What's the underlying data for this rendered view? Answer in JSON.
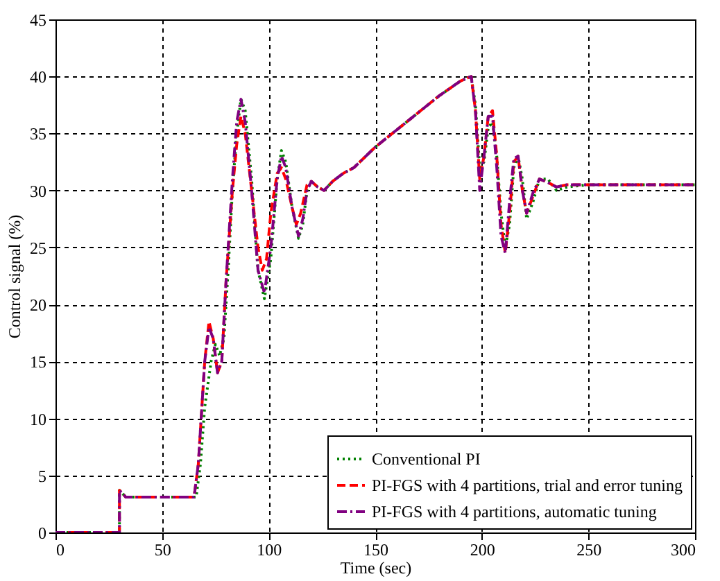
{
  "chart_data": {
    "type": "line",
    "xlabel": "Time (sec)",
    "ylabel": "Control signal (%)",
    "xlim": [
      0,
      300
    ],
    "ylim": [
      0,
      45
    ],
    "xticks": [
      0,
      50,
      100,
      150,
      200,
      250,
      300
    ],
    "yticks": [
      0,
      5,
      10,
      15,
      20,
      25,
      30,
      35,
      40,
      45
    ],
    "grid": true,
    "legend": "bottom right",
    "series": [
      {
        "name": "Conventional PI",
        "color": "#008000",
        "line_style": "dotted",
        "x": [
          0,
          30,
          30,
          33,
          66,
          68,
          70,
          73,
          75,
          77,
          79,
          81,
          83,
          85,
          87,
          89,
          92,
          95,
          98,
          101,
          104,
          106,
          108,
          111,
          114,
          116,
          118,
          120,
          123,
          126,
          130,
          135,
          140,
          150,
          160,
          170,
          180,
          190,
          195,
          197,
          199,
          201,
          203,
          205,
          207,
          209,
          211,
          213,
          215,
          217,
          219,
          221,
          224,
          227,
          231,
          235,
          240,
          250,
          260,
          300
        ],
        "values": [
          0,
          0,
          3.7,
          3.1,
          3.1,
          6,
          11,
          15,
          16.5,
          15.5,
          17,
          23,
          30,
          35,
          38,
          37,
          31,
          23,
          20.5,
          24,
          31,
          33.5,
          32.5,
          28.5,
          25.8,
          27,
          30,
          30.8,
          30.3,
          30,
          30.8,
          31.5,
          32,
          33.8,
          35.3,
          36.8,
          38.3,
          39.6,
          40,
          37.5,
          32,
          32.5,
          35.5,
          36,
          33,
          28,
          25,
          27,
          32,
          33,
          31,
          27.5,
          29,
          31,
          31,
          30,
          30.3,
          30.5,
          30.5,
          30.5
        ]
      },
      {
        "name": "PI-FGS with 4 partitions, trial and error tuning",
        "color": "#ff0000",
        "line_style": "dashed",
        "x": [
          0,
          30,
          30,
          33,
          65,
          67,
          70,
          72,
          74,
          76,
          78,
          80,
          83,
          85,
          87,
          89,
          92,
          95,
          97,
          99,
          101,
          104,
          106,
          108,
          111,
          113,
          115,
          118,
          120,
          123,
          126,
          130,
          135,
          140,
          150,
          160,
          170,
          180,
          190,
          195,
          197,
          199,
          201,
          203,
          205,
          207,
          209,
          211,
          213,
          215,
          217,
          219,
          221,
          224,
          227,
          231,
          235,
          240,
          250,
          260,
          300
        ],
        "values": [
          0,
          0,
          3.7,
          3.1,
          3.1,
          6,
          15,
          18.5,
          17,
          14,
          15,
          22,
          30,
          34,
          36.5,
          35,
          30,
          25,
          23,
          24,
          28,
          31.5,
          32,
          31,
          28.5,
          27,
          28,
          30.5,
          30.8,
          30.3,
          30,
          30.8,
          31.5,
          32,
          33.8,
          35.3,
          36.8,
          38.3,
          39.6,
          40,
          37,
          31,
          33,
          36.5,
          37,
          33,
          27,
          24.5,
          28,
          32.5,
          33,
          30,
          28,
          29.5,
          31,
          30.7,
          30.3,
          30.5,
          30.5,
          30.5,
          30.5
        ]
      },
      {
        "name": "PI-FGS with 4 partitions, automatic tuning",
        "color": "#800080",
        "line_style": "dashdot",
        "x": [
          0,
          30,
          30,
          33,
          65,
          67,
          70,
          72,
          74,
          76,
          78,
          80,
          83,
          85,
          87,
          89,
          92,
          95,
          98,
          101,
          104,
          106,
          108,
          111,
          114,
          116,
          118,
          120,
          123,
          126,
          130,
          135,
          140,
          150,
          160,
          170,
          180,
          190,
          195,
          197,
          199,
          201,
          203,
          205,
          207,
          209,
          211,
          213,
          215,
          217,
          219,
          221,
          224,
          227,
          231,
          235,
          240,
          250,
          260,
          300
        ],
        "values": [
          0,
          0,
          3.7,
          3.1,
          3.1,
          6,
          15,
          18,
          17,
          14,
          15,
          22,
          31,
          36,
          38,
          36,
          30,
          23,
          21,
          25,
          31,
          33,
          32,
          28.5,
          26,
          27.5,
          30,
          30.8,
          30.3,
          30,
          30.8,
          31.5,
          32,
          33.8,
          35.3,
          36.8,
          38.3,
          39.6,
          40,
          37,
          30,
          33,
          36.5,
          36.5,
          32,
          26,
          24.5,
          29,
          32.8,
          33,
          30,
          28,
          29.8,
          31,
          30.7,
          30.3,
          30.5,
          30.5,
          30.5,
          30.5
        ]
      }
    ]
  }
}
